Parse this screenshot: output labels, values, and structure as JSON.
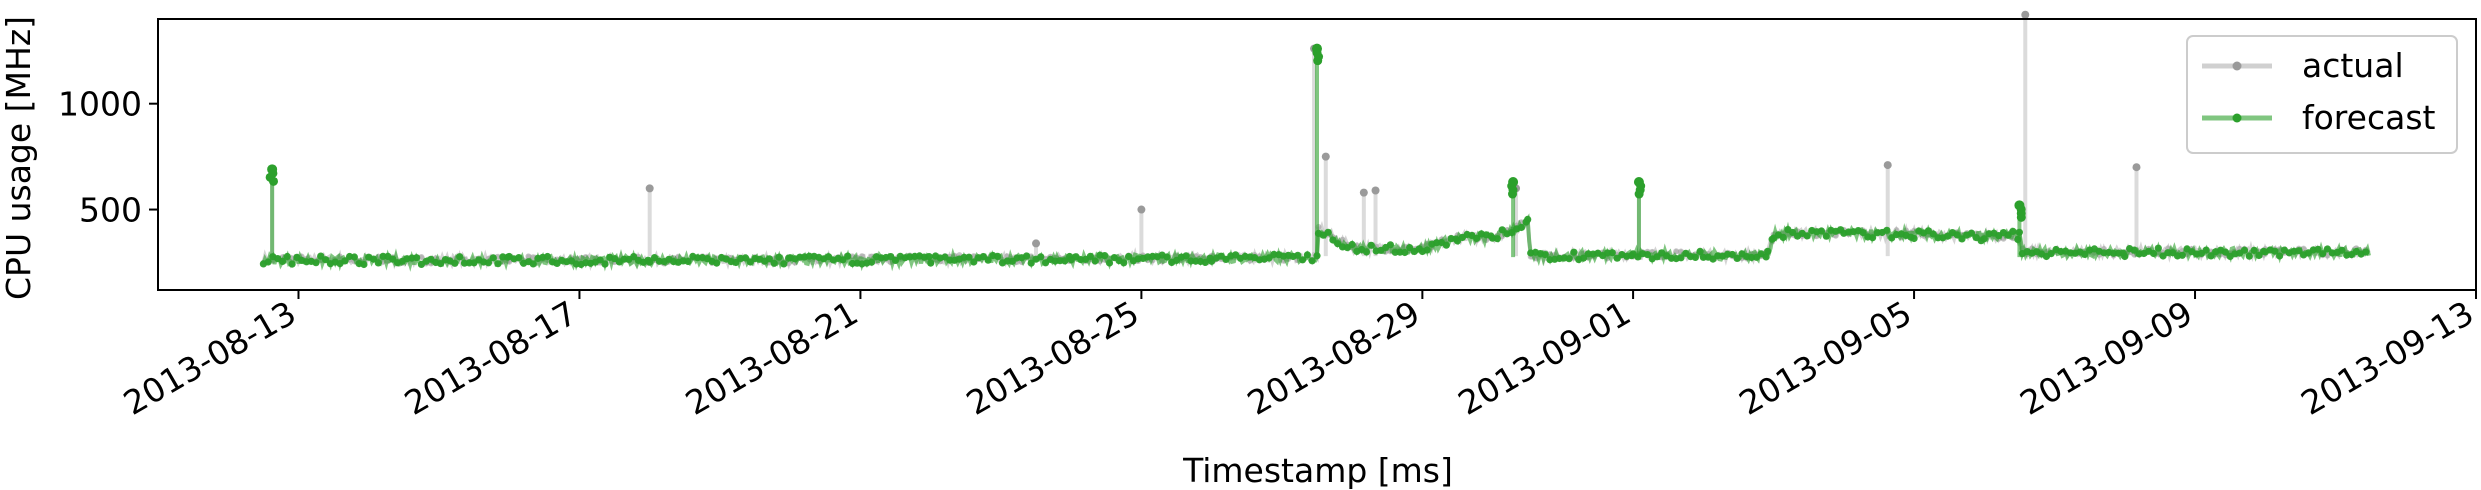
{
  "chart_data": {
    "type": "line",
    "title": "",
    "xlabel": "Timestamp [ms]",
    "ylabel": "CPU usage [MHz]",
    "x_axis": {
      "type": "date",
      "range": [
        "2013-08-11",
        "2013-09-13"
      ],
      "ticks": [
        "2013-08-13",
        "2013-08-17",
        "2013-08-21",
        "2013-08-25",
        "2013-08-29",
        "2013-09-01",
        "2013-09-05",
        "2013-09-09",
        "2013-09-13"
      ]
    },
    "y_axis": {
      "range": [
        120,
        1400
      ],
      "ticks": [
        500,
        1000
      ]
    },
    "grid": false,
    "legend": {
      "position": "top-right",
      "entries": [
        "actual",
        "forecast"
      ]
    },
    "colors": {
      "actual": "#b0b0b0",
      "forecast": "#2ca02c"
    },
    "series": [
      {
        "name": "actual",
        "baseline": [
          [
            "2013-08-12T12:00",
            265
          ],
          [
            "2013-08-14",
            262
          ],
          [
            "2013-08-16",
            262
          ],
          [
            "2013-08-18",
            262
          ],
          [
            "2013-08-20",
            262
          ],
          [
            "2013-08-22",
            268
          ],
          [
            "2013-08-24",
            268
          ],
          [
            "2013-08-26",
            272
          ],
          [
            "2013-08-27T12:00",
            275
          ],
          [
            "2013-08-27T12:30",
            410
          ],
          [
            "2013-08-28",
            320
          ],
          [
            "2013-08-29",
            315
          ],
          [
            "2013-08-29T12:00",
            370
          ],
          [
            "2013-08-30",
            370
          ],
          [
            "2013-08-30T12:00",
            440
          ],
          [
            "2013-08-30T13:00",
            280
          ],
          [
            "2013-09-01",
            290
          ],
          [
            "2013-09-02",
            285
          ],
          [
            "2013-09-02T22:00",
            285
          ],
          [
            "2013-09-03",
            390
          ],
          [
            "2013-09-04",
            390
          ],
          [
            "2013-09-05",
            385
          ],
          [
            "2013-09-06",
            375
          ],
          [
            "2013-09-06T12:00",
            380
          ],
          [
            "2013-09-06T13:00",
            300
          ],
          [
            "2013-09-08",
            300
          ],
          [
            "2013-09-10",
            300
          ],
          [
            "2013-09-11T12:00",
            300
          ]
        ],
        "spikes": [
          [
            "2013-08-12T15:00",
            680
          ],
          [
            "2013-08-18",
            600
          ],
          [
            "2013-08-23T12:00",
            340
          ],
          [
            "2013-08-25",
            500
          ],
          [
            "2013-08-27T11:00",
            1260
          ],
          [
            "2013-08-27T15:00",
            750
          ],
          [
            "2013-08-28T04:00",
            580
          ],
          [
            "2013-08-28T08:00",
            590
          ],
          [
            "2013-08-30T08:00",
            600
          ],
          [
            "2013-09-01T02:00",
            630
          ],
          [
            "2013-09-04T15:00",
            710
          ],
          [
            "2013-09-06T14:00",
            1420
          ],
          [
            "2013-09-08T04:00",
            700
          ]
        ]
      },
      {
        "name": "forecast",
        "baseline": [
          [
            "2013-08-12T12:00",
            262
          ],
          [
            "2013-08-14",
            260
          ],
          [
            "2013-08-16",
            260
          ],
          [
            "2013-08-18",
            260
          ],
          [
            "2013-08-20",
            260
          ],
          [
            "2013-08-22",
            265
          ],
          [
            "2013-08-24",
            266
          ],
          [
            "2013-08-26",
            270
          ],
          [
            "2013-08-27T12:00",
            272
          ],
          [
            "2013-08-27T12:30",
            405
          ],
          [
            "2013-08-28",
            318
          ],
          [
            "2013-08-29",
            312
          ],
          [
            "2013-08-29T12:00",
            365
          ],
          [
            "2013-08-30",
            368
          ],
          [
            "2013-08-30T12:00",
            435
          ],
          [
            "2013-08-30T13:00",
            278
          ],
          [
            "2013-09-01",
            288
          ],
          [
            "2013-09-02",
            283
          ],
          [
            "2013-09-02T22:00",
            283
          ],
          [
            "2013-09-03",
            385
          ],
          [
            "2013-09-04",
            388
          ],
          [
            "2013-09-05",
            382
          ],
          [
            "2013-09-06",
            372
          ],
          [
            "2013-09-06T12:00",
            378
          ],
          [
            "2013-09-06T13:00",
            298
          ],
          [
            "2013-09-08",
            298
          ],
          [
            "2013-09-10",
            298
          ],
          [
            "2013-09-11T12:00",
            298
          ]
        ],
        "spikes": [
          [
            "2013-08-12T15:00",
            690
          ],
          [
            "2013-08-27T12:00",
            1260
          ],
          [
            "2013-08-30T07:00",
            630
          ],
          [
            "2013-09-01T02:00",
            630
          ],
          [
            "2013-09-06T12:00",
            520
          ]
        ]
      }
    ]
  }
}
